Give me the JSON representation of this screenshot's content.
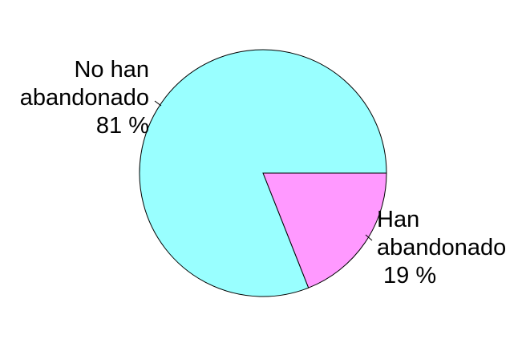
{
  "chart_data": {
    "type": "pie",
    "start_angle_deg": 0,
    "direction": "clockwise",
    "slices": [
      {
        "label_lines": [
          "Han",
          "abandonado",
          "19 %"
        ],
        "value": 19,
        "color": "#FF99FF"
      },
      {
        "label_lines": [
          "No han",
          "abandonado",
          "81 %"
        ],
        "value": 81,
        "color": "#99FFFF"
      }
    ]
  }
}
